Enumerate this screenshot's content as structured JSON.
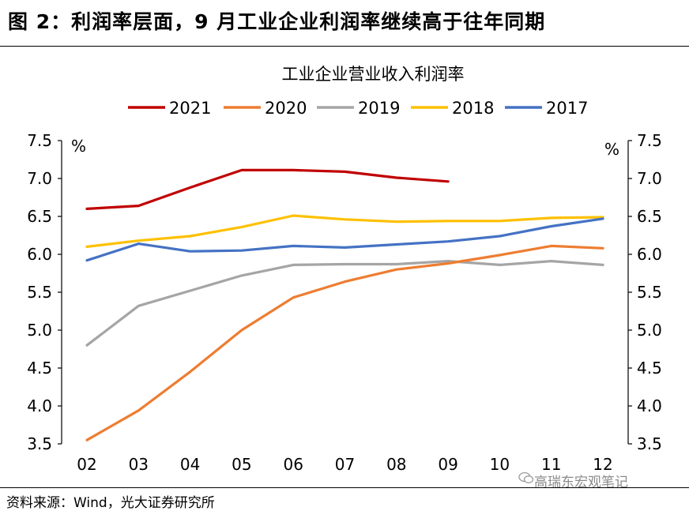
{
  "figure": {
    "title": "图 2：利润率层面，9 月工业企业利润率继续高于往年同期",
    "source": "资料来源：Wind，光大证券研究所",
    "watermark": "高瑞东宏观笔记"
  },
  "chart_data": {
    "type": "line",
    "title": "工业企业营业收入利润率",
    "unit_left": "%",
    "unit_right": "%",
    "categories": [
      "02",
      "03",
      "04",
      "05",
      "06",
      "07",
      "08",
      "09",
      "10",
      "11",
      "12"
    ],
    "ylim": [
      3.5,
      7.5
    ],
    "yticks": [
      "3.5",
      "4.0",
      "4.5",
      "5.0",
      "5.5",
      "6.0",
      "6.5",
      "7.0",
      "7.5"
    ],
    "grid": false,
    "legend_position": "top",
    "series": [
      {
        "name": "2021",
        "color": "#c00000",
        "values": [
          6.6,
          6.64,
          6.88,
          7.11,
          7.11,
          7.09,
          7.01,
          6.96,
          null,
          null,
          null
        ]
      },
      {
        "name": "2020",
        "color": "#ed7d31",
        "values": [
          3.55,
          3.94,
          4.45,
          5.0,
          5.43,
          5.64,
          5.8,
          5.88,
          5.99,
          6.11,
          6.08
        ]
      },
      {
        "name": "2019",
        "color": "#a5a5a5",
        "values": [
          4.8,
          5.32,
          5.52,
          5.72,
          5.86,
          5.87,
          5.87,
          5.91,
          5.86,
          5.91,
          5.86
        ]
      },
      {
        "name": "2018",
        "color": "#ffc000",
        "values": [
          6.1,
          6.18,
          6.24,
          6.36,
          6.51,
          6.46,
          6.43,
          6.44,
          6.44,
          6.48,
          6.49
        ]
      },
      {
        "name": "2017",
        "color": "#4472c4",
        "values": [
          5.92,
          6.14,
          6.04,
          6.05,
          6.11,
          6.09,
          6.13,
          6.17,
          6.24,
          6.37,
          6.47
        ]
      }
    ]
  }
}
